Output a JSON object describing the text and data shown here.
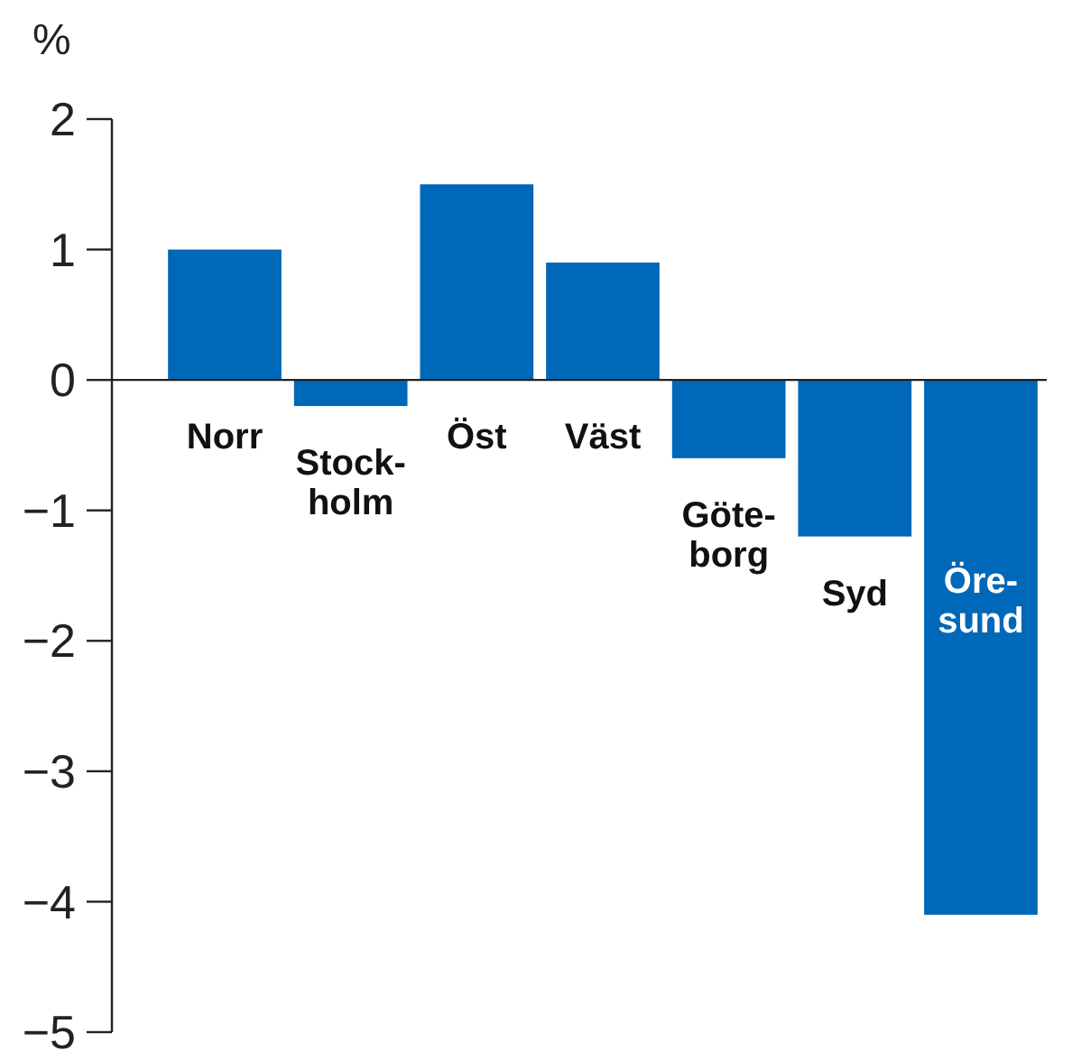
{
  "chart_data": {
    "type": "bar",
    "ylabel": "%",
    "categories": [
      "Norr",
      "Stock-\nholm",
      "Öst",
      "Väst",
      "Göte-\nborg",
      "Syd",
      "Öre-\nsund"
    ],
    "values": [
      1.0,
      -0.2,
      1.5,
      0.9,
      -0.6,
      -1.2,
      -4.1
    ],
    "color": "#0068b8",
    "ylim": [
      -5,
      2
    ],
    "yticks": [
      {
        "value": -5,
        "label": "−5"
      },
      {
        "value": -4,
        "label": "−4"
      },
      {
        "value": -3,
        "label": "−3"
      },
      {
        "value": -2,
        "label": "−2"
      },
      {
        "value": -1,
        "label": "−1"
      },
      0,
      1,
      2
    ],
    "grid": false
  }
}
